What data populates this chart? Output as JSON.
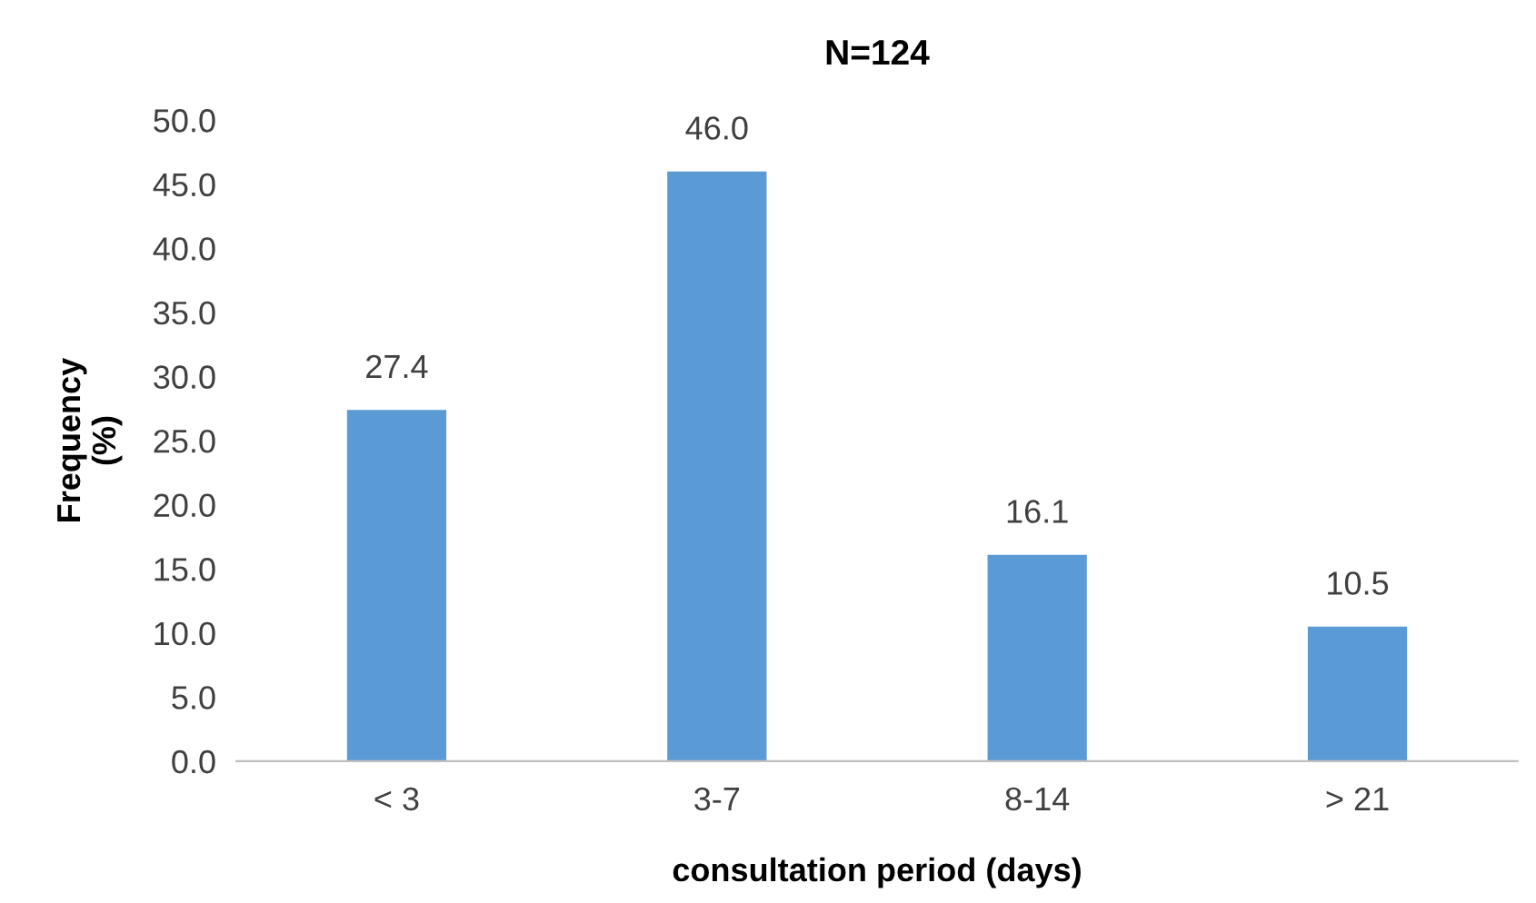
{
  "chart_data": {
    "type": "bar",
    "title": "N=124",
    "xlabel": "consultation period (days)",
    "ylabel": "Frequency\n(%)",
    "categories": [
      "< 3",
      "3-7",
      "8-14",
      "> 21"
    ],
    "values": [
      27.4,
      46.0,
      16.1,
      10.5
    ],
    "value_labels": [
      "27.4",
      "46.0",
      "16.1",
      "10.5"
    ],
    "color": "#5b9bd5",
    "ylim": [
      0,
      50
    ],
    "yticks": [
      {
        "value": 0,
        "label": "0.0"
      },
      {
        "value": 5,
        "label": "5.0"
      },
      {
        "value": 10,
        "label": "10.0"
      },
      {
        "value": 15,
        "label": "15.0"
      },
      {
        "value": 20,
        "label": "20.0"
      },
      {
        "value": 25,
        "label": "25.0"
      },
      {
        "value": 30,
        "label": "30.0"
      },
      {
        "value": 35,
        "label": "35.0"
      },
      {
        "value": 40,
        "label": "40.0"
      },
      {
        "value": 45,
        "label": "45.0"
      },
      {
        "value": 50,
        "label": "50.0"
      }
    ],
    "grid": false,
    "legend": false
  }
}
